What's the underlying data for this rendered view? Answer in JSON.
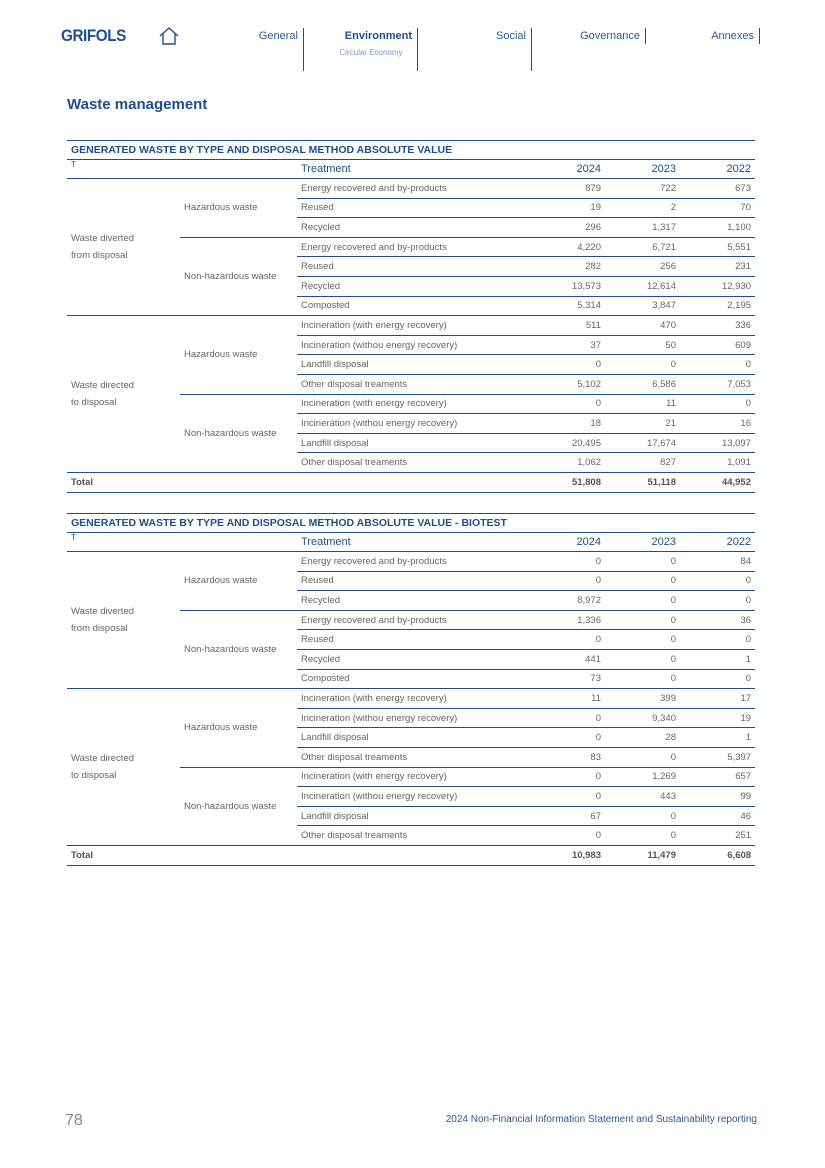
{
  "header": {
    "logo": "GRIFOLS",
    "nav": [
      {
        "label": "General"
      },
      {
        "label": "Environment",
        "sub": "Circular Economy"
      },
      {
        "label": "Social"
      },
      {
        "label": "Governance"
      },
      {
        "label": "Annexes"
      }
    ]
  },
  "section_title": "Waste management",
  "tables": [
    {
      "title": "GENERATED  WASTE BY TYPE AND DISPOSAL METHOD ABSOLUTE VALUE",
      "header": [
        "T",
        "Treatment",
        "2024",
        "2023",
        "2022"
      ],
      "groups": [
        {
          "label": "Waste diverted from disposal",
          "subgroups": [
            {
              "label": "Hazardous waste",
              "rows": [
                [
                  "Energy recovered and by-products",
                  "879",
                  "722",
                  "673"
                ],
                [
                  "Reused",
                  "19",
                  "2",
                  "70"
                ],
                [
                  "Recycled",
                  "296",
                  "1,317",
                  "1,100"
                ]
              ]
            },
            {
              "label": "Non-hazardous waste",
              "rows": [
                [
                  "Energy recovered and by-products",
                  "4,220",
                  "6,721",
                  "5,551"
                ],
                [
                  "Reused",
                  "282",
                  "256",
                  "231"
                ],
                [
                  "Recycled",
                  "13,573",
                  "12,614",
                  "12,930"
                ],
                [
                  "Composted",
                  "5,314",
                  "3,847",
                  "2,195"
                ]
              ]
            }
          ]
        },
        {
          "label": "Waste directed to disposal",
          "subgroups": [
            {
              "label": "Hazardous waste",
              "rows": [
                [
                  "Incineration (with energy recovery)",
                  "511",
                  "470",
                  "336"
                ],
                [
                  "Incineration (withou energy recovery)",
                  "37",
                  "50",
                  "609"
                ],
                [
                  "Landfill disposal",
                  "0",
                  "0",
                  "0"
                ],
                [
                  "Other disposal treaments",
                  "5,102",
                  "6,586",
                  "7,053"
                ]
              ]
            },
            {
              "label": "Non-hazardous waste",
              "rows": [
                [
                  "Incineration (with energy recovery)",
                  "0",
                  "11",
                  "0"
                ],
                [
                  "Incineration (withou energy recovery)",
                  "18",
                  "21",
                  "16"
                ],
                [
                  "Landfill disposal",
                  "20,495",
                  "17,674",
                  "13,097"
                ],
                [
                  "Other disposal treaments",
                  "1,062",
                  "827",
                  "1,091"
                ]
              ]
            }
          ]
        }
      ],
      "total": [
        "Total",
        "51,808",
        "51,118",
        "44,952"
      ]
    },
    {
      "title": "GENERATED  WASTE BY TYPE AND DISPOSAL METHOD ABSOLUTE VALUE - BIOTEST",
      "header": [
        "T",
        "Treatment",
        "2024",
        "2023",
        "2022"
      ],
      "groups": [
        {
          "label": "Waste diverted from disposal",
          "subgroups": [
            {
              "label": "Hazardous waste",
              "rows": [
                [
                  "Energy recovered and by-products",
                  "0",
                  "0",
                  "84"
                ],
                [
                  "Reused",
                  "0",
                  "0",
                  "0"
                ],
                [
                  "Recycled",
                  "8,972",
                  "0",
                  "0"
                ]
              ]
            },
            {
              "label": "Non-hazardous waste",
              "rows": [
                [
                  "Energy recovered and by-products",
                  "1,336",
                  "0",
                  "36"
                ],
                [
                  "Reused",
                  "0",
                  "0",
                  "0"
                ],
                [
                  "Recycled",
                  "441",
                  "0",
                  "1"
                ],
                [
                  "Composted",
                  "73",
                  "0",
                  "0"
                ]
              ]
            }
          ]
        },
        {
          "label": "Waste directed to disposal",
          "subgroups": [
            {
              "label": "Hazardous waste",
              "rows": [
                [
                  "Incineration (with energy recovery)",
                  "11",
                  "399",
                  "17"
                ],
                [
                  "Incineration (withou energy recovery)",
                  "0",
                  "9,340",
                  "19"
                ],
                [
                  "Landfill disposal",
                  "0",
                  "28",
                  "1"
                ],
                [
                  "Other disposal treaments",
                  "83",
                  "0",
                  "5,397"
                ]
              ]
            },
            {
              "label": "Non-hazardous waste",
              "rows": [
                [
                  "Incineration (with energy recovery)",
                  "0",
                  "1,269",
                  "657"
                ],
                [
                  "Incineration (withou energy recovery)",
                  "0",
                  "443",
                  "99"
                ],
                [
                  "Landfill disposal",
                  "67",
                  "0",
                  "46"
                ],
                [
                  "Other disposal treaments",
                  "0",
                  "0",
                  "251"
                ]
              ]
            }
          ]
        }
      ],
      "total": [
        "Total",
        "10,983",
        "11,479",
        "6,608"
      ]
    }
  ],
  "footer": {
    "page": "78",
    "text": "2024 Non-Financial Information Statement and Sustainability reporting"
  }
}
